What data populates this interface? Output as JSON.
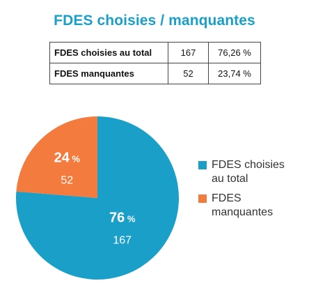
{
  "title": "FDES choisies / manquantes",
  "table": {
    "rows": [
      {
        "label": "FDES choisies au total",
        "count": "167",
        "percent": "76,26 %"
      },
      {
        "label": "FDES manquantes",
        "count": "52",
        "percent": "23,74 %"
      }
    ]
  },
  "colors": {
    "title": "#1a9fc8",
    "chosen": "#1a9fc8",
    "missing": "#f47b3e",
    "slice_text": "#ffffff"
  },
  "chart_data": {
    "type": "pie",
    "slices": [
      {
        "name": "FDES choisies au total",
        "value": 167,
        "percent_label": "76",
        "count_label": "167",
        "color": "#1a9fc8"
      },
      {
        "name": "FDES manquantes",
        "value": 52,
        "percent_label": "24",
        "count_label": "52",
        "color": "#f47b3e"
      }
    ],
    "percent_unit": "%",
    "legend": {
      "position": "right",
      "entries": [
        {
          "label_line1": "FDES choisies",
          "label_line2": "au total",
          "color": "#1a9fc8"
        },
        {
          "label_line1": "FDES",
          "label_line2": "manquantes",
          "color": "#f47b3e"
        }
      ]
    }
  }
}
